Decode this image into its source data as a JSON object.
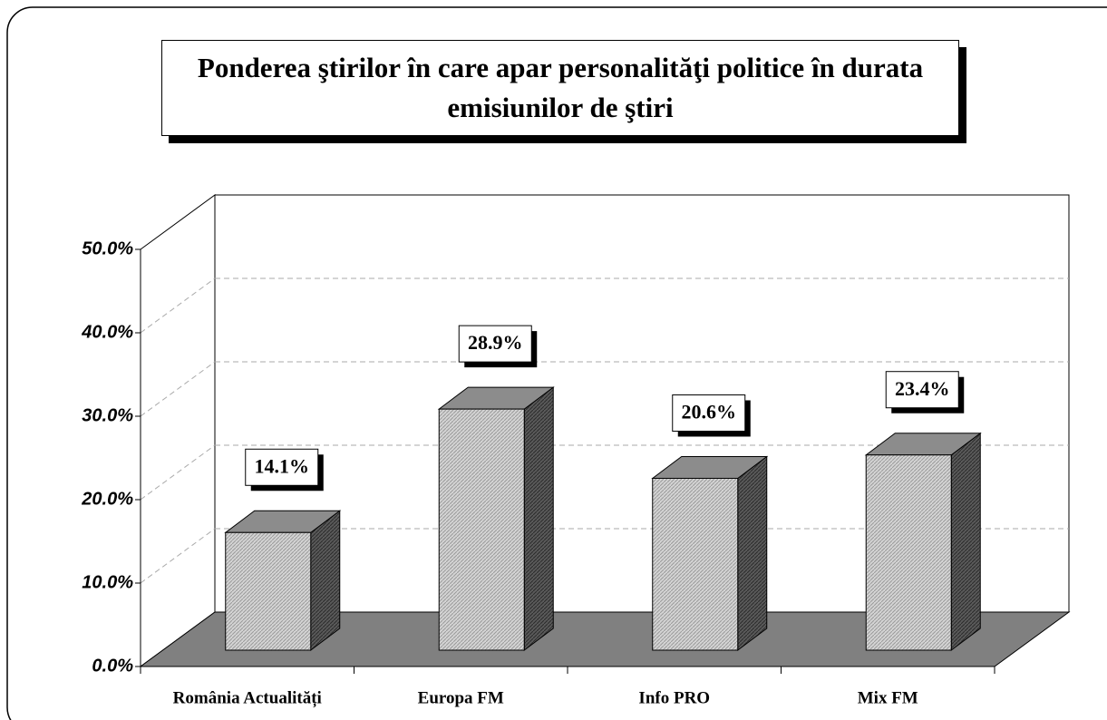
{
  "chart_data": {
    "type": "bar3d",
    "title": "Ponderea ştirilor în care apar personalităţi politice în durata emisiunilor de ştiri",
    "categories": [
      "România Actualități",
      "Europa FM",
      "Info PRO",
      "Mix FM"
    ],
    "values": [
      14.1,
      28.9,
      20.6,
      23.4
    ],
    "value_labels": [
      "14.1%",
      "28.9%",
      "20.6%",
      "23.4%"
    ],
    "color": "#c8c8c8",
    "ylim": [
      0,
      50
    ],
    "yticks": [
      {
        "value": 0,
        "label": "0.0%"
      },
      {
        "value": 10,
        "label": "10.0%"
      },
      {
        "value": 20,
        "label": "20.0%"
      },
      {
        "value": 30,
        "label": "30.0%"
      },
      {
        "value": 40,
        "label": "40.0%"
      },
      {
        "value": 50,
        "label": "50.0%"
      }
    ],
    "grid": true
  }
}
